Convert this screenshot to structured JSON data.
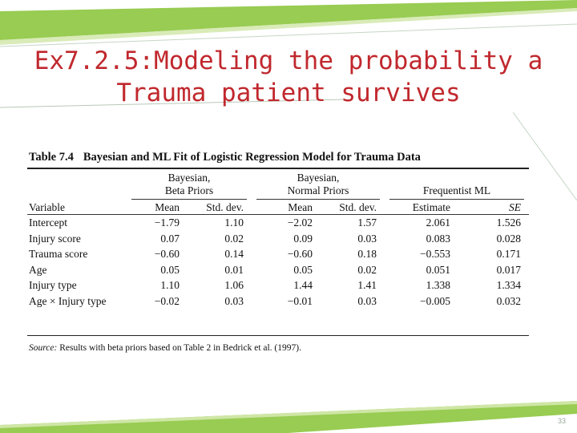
{
  "slide": {
    "title_line1": "Ex7.2.5:Modeling the probability a",
    "title_line2": "Trauma patient survives",
    "page_number": "33",
    "accent_color": "#c0282d",
    "decor_green": "#8dc63f"
  },
  "table": {
    "number": "Table 7.4",
    "caption": "Bayesian and ML Fit of Logistic Regression Model for Trauma Data",
    "groups": {
      "beta_line1": "Bayesian,",
      "beta_line2": "Beta Priors",
      "normal_line1": "Bayesian,",
      "normal_line2": "Normal Priors",
      "freq": "Frequentist ML"
    },
    "columns": {
      "variable": "Variable",
      "mean1": "Mean",
      "sd1": "Std. dev.",
      "mean2": "Mean",
      "sd2": "Std. dev.",
      "estimate": "Estimate",
      "se": "SE"
    },
    "rows": [
      {
        "variable": "Intercept",
        "beta_mean": "−1.79",
        "beta_sd": "1.10",
        "norm_mean": "−2.02",
        "norm_sd": "1.57",
        "ml_est": "2.061",
        "ml_se": "1.526"
      },
      {
        "variable": "Injury score",
        "beta_mean": "0.07",
        "beta_sd": "0.02",
        "norm_mean": "0.09",
        "norm_sd": "0.03",
        "ml_est": "0.083",
        "ml_se": "0.028"
      },
      {
        "variable": "Trauma score",
        "beta_mean": "−0.60",
        "beta_sd": "0.14",
        "norm_mean": "−0.60",
        "norm_sd": "0.18",
        "ml_est": "−0.553",
        "ml_se": "0.171"
      },
      {
        "variable": "Age",
        "beta_mean": "0.05",
        "beta_sd": "0.01",
        "norm_mean": "0.05",
        "norm_sd": "0.02",
        "ml_est": "0.051",
        "ml_se": "0.017"
      },
      {
        "variable": "Injury type",
        "beta_mean": "1.10",
        "beta_sd": "1.06",
        "norm_mean": "1.44",
        "norm_sd": "1.41",
        "ml_est": "1.338",
        "ml_se": "1.334"
      },
      {
        "variable": "Age × Injury type",
        "beta_mean": "−0.02",
        "beta_sd": "0.03",
        "norm_mean": "−0.01",
        "norm_sd": "0.03",
        "ml_est": "−0.005",
        "ml_se": "0.032"
      }
    ],
    "source_label": "Source:",
    "source_text": "Results with beta priors based on Table 2 in Bedrick et al. (1997)."
  }
}
